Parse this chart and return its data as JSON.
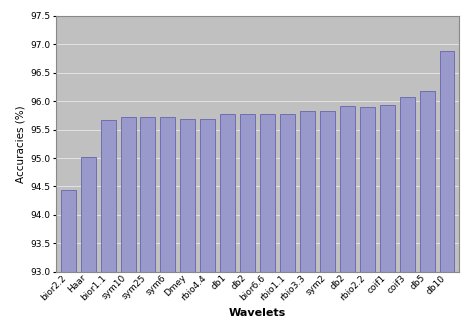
{
  "categories": [
    "bior2.2",
    "Haar",
    "bior1.1",
    "sym10",
    "sym25",
    "sym6",
    "Dmey",
    "rbio4.4",
    "db1",
    "db2",
    "bior6.6",
    "rbio1.1",
    "rbio3.3",
    "sym2",
    "db2",
    "rbio2.2",
    "coif1",
    "coif3",
    "db5",
    "db10"
  ],
  "values": [
    94.43,
    95.02,
    95.67,
    95.72,
    95.72,
    95.72,
    95.69,
    95.69,
    95.77,
    95.78,
    95.77,
    95.77,
    95.83,
    95.83,
    95.92,
    95.9,
    95.93,
    96.08,
    96.18,
    96.88
  ],
  "bar_color": "#9999cc",
  "bar_edge_color": "#5555aa",
  "ylim": [
    93.0,
    97.5
  ],
  "yticks": [
    93.0,
    93.5,
    94.0,
    94.5,
    95.0,
    95.5,
    96.0,
    96.5,
    97.0,
    97.5
  ],
  "xlabel": "Wavelets",
  "ylabel": "Accuracies (%)",
  "plot_bg_color": "#c0c0c0",
  "fig_bg_color": "#ffffff",
  "outer_border_color": "#aaaaaa",
  "tick_fontsize": 6.5,
  "label_fontsize": 8,
  "ylabel_fontsize": 7.5
}
